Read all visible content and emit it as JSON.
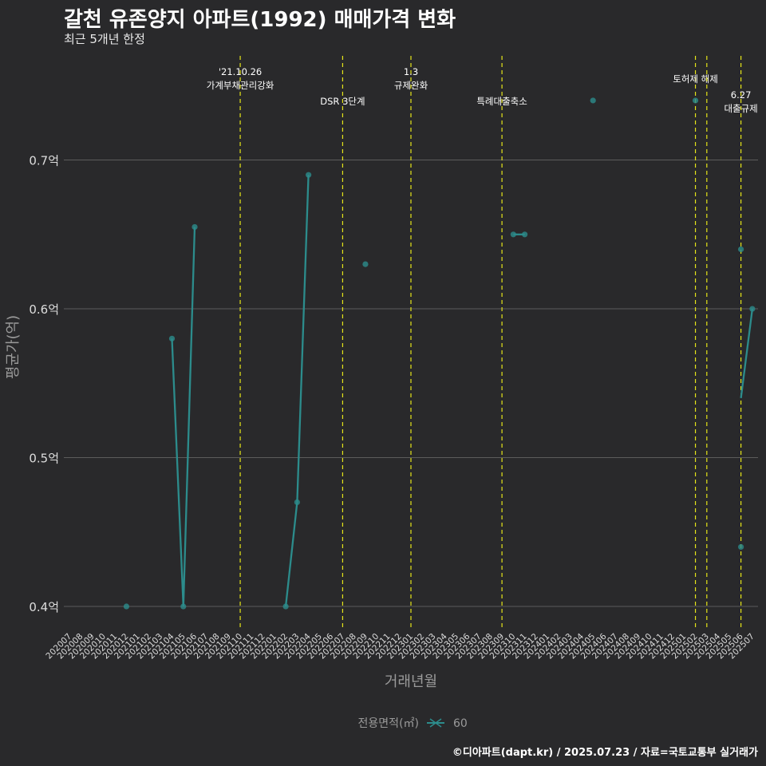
{
  "chart_data": {
    "type": "line",
    "title": "갈천 유존양지 아파트(1992) 매매가격 변화",
    "subtitle": "최근 5개년 한정",
    "xlabel": "거래년월",
    "ylabel": "평균가(억)",
    "legend_title": "전용면적(㎡)",
    "legend_position": "bottom",
    "footer": "©디아파트(dapt.kr) / 2025.07.23 / 자료=국토교통부 실거래가",
    "colors": {
      "background": "#29292b",
      "series": "#2c8c8c",
      "grid": "#5c5c5c",
      "vline": "#e6e619",
      "axis_text": "#dddddd",
      "axis_title": "#9a9a9a"
    },
    "ylim": [
      0.385,
      0.77
    ],
    "yticks": [
      0.4,
      0.5,
      0.6,
      0.7
    ],
    "ytick_labels": [
      "0.4억",
      "0.5억",
      "0.6억",
      "0.7억"
    ],
    "categories": [
      "202007",
      "202008",
      "202009",
      "202010",
      "202011",
      "202012",
      "202101",
      "202102",
      "202103",
      "202104",
      "202105",
      "202106",
      "202107",
      "202108",
      "202109",
      "202110",
      "202111",
      "202112",
      "202201",
      "202202",
      "202203",
      "202204",
      "202205",
      "202206",
      "202207",
      "202208",
      "202209",
      "202210",
      "202211",
      "202212",
      "202301",
      "202302",
      "202303",
      "202304",
      "202305",
      "202306",
      "202307",
      "202308",
      "202309",
      "202310",
      "202311",
      "202312",
      "202401",
      "202402",
      "202403",
      "202404",
      "202405",
      "202406",
      "202407",
      "202408",
      "202409",
      "202410",
      "202411",
      "202412",
      "202501",
      "202502",
      "202503",
      "202504",
      "202505",
      "202506",
      "202507"
    ],
    "series": [
      {
        "name": "60",
        "lines": [
          [
            [
              "202104",
              0.58
            ],
            [
              "202105",
              0.4
            ],
            [
              "202106",
              0.655
            ]
          ],
          [
            [
              "202202",
              0.4
            ],
            [
              "202203",
              0.47
            ],
            [
              "202204",
              0.69
            ]
          ],
          [
            [
              "202310",
              0.65
            ],
            [
              "202311",
              0.65
            ]
          ],
          [
            [
              "202506",
              0.54
            ],
            [
              "202507",
              0.6
            ]
          ]
        ],
        "points": [
          [
            "202012",
            0.4
          ],
          [
            "202104",
            0.58
          ],
          [
            "202105",
            0.4
          ],
          [
            "202106",
            0.655
          ],
          [
            "202202",
            0.4
          ],
          [
            "202203",
            0.47
          ],
          [
            "202204",
            0.69
          ],
          [
            "202209",
            0.63
          ],
          [
            "202310",
            0.65
          ],
          [
            "202311",
            0.65
          ],
          [
            "202405",
            0.74
          ],
          [
            "202502",
            0.74
          ],
          [
            "202506",
            0.64
          ],
          [
            "202506",
            0.44
          ],
          [
            "202507",
            0.6
          ]
        ]
      }
    ],
    "events": [
      {
        "x": "202110",
        "lines": [
          "'21.10.26",
          "가계부채관리강화"
        ],
        "level": "high"
      },
      {
        "x": "202207",
        "lines": [
          "DSR 3단계"
        ],
        "level": "low"
      },
      {
        "x": "202301",
        "lines": [
          "1.3",
          "규제완화"
        ],
        "level": "high"
      },
      {
        "x": "202309",
        "lines": [
          "특례대출축소"
        ],
        "level": "low"
      },
      {
        "x": "202502",
        "lines": [
          "토허제 해제"
        ],
        "level": "mid"
      },
      {
        "x": "202503",
        "lines": [],
        "level": "none"
      },
      {
        "x": "202506",
        "lines": [
          "6.27",
          "대출규제"
        ],
        "level": "low2"
      }
    ]
  }
}
